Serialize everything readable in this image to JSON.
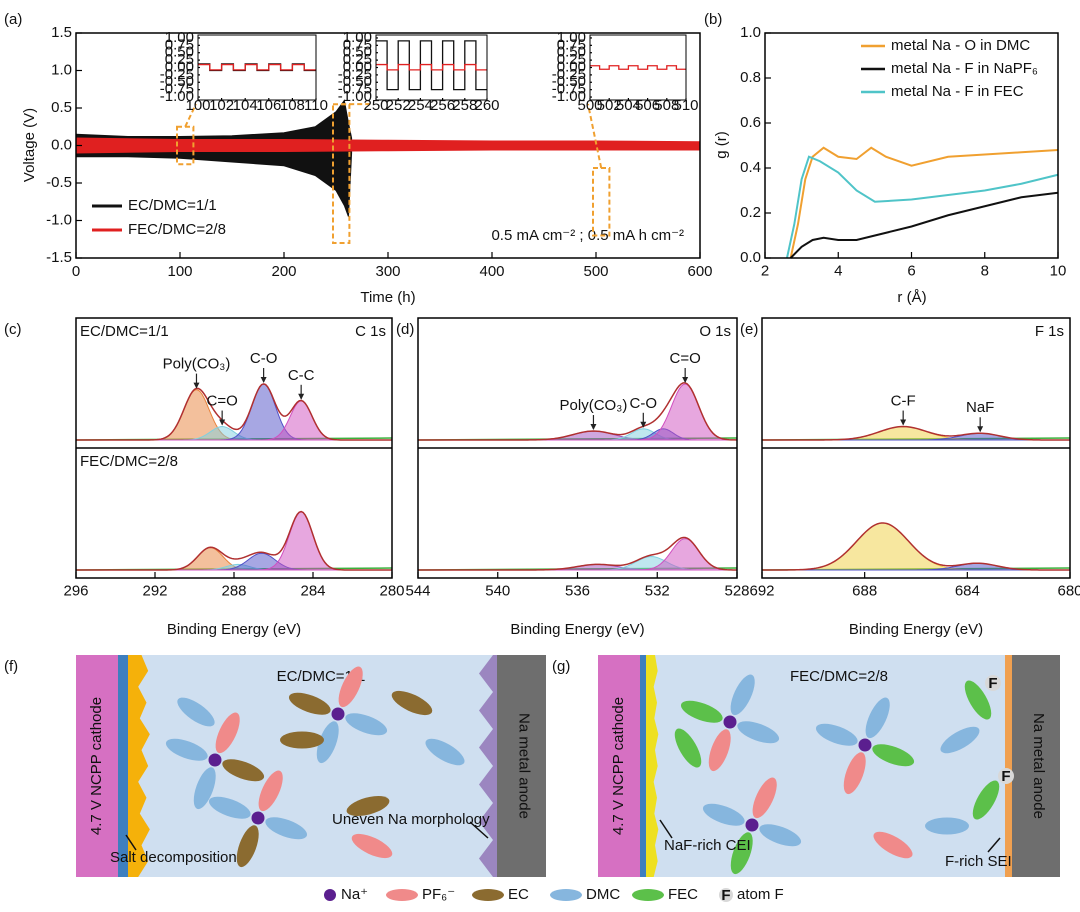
{
  "chart_data": [
    {
      "type": "band",
      "panel_label": "(a)",
      "xlabel": "Time (h)",
      "ylabel": "Voltage (V)",
      "xlim": [
        0,
        600
      ],
      "xticks": [
        0,
        100,
        200,
        300,
        400,
        500,
        600
      ],
      "ylim": [
        -1.5,
        1.5
      ],
      "yticks": [
        -1.5,
        {
          "value": -1.0,
          "label": "-1.0"
        },
        -0.5,
        {
          "value": 0.0,
          "label": "0.0"
        },
        0.5,
        {
          "value": 1.0,
          "label": "1.0"
        },
        1.5
      ],
      "legend": "lower left",
      "annotation": "0.5 mA cm⁻² ; 0.5 mA h cm⁻²",
      "series": [
        {
          "name": "EC/DMC=1/1",
          "color": "#111111",
          "x": [
            0,
            50,
            100,
            150,
            200,
            230,
            250,
            258,
            262,
            265
          ],
          "values": [
            0.15,
            0.12,
            0.12,
            0.13,
            0.17,
            0.25,
            0.45,
            0.6,
            0.3,
            0.1
          ],
          "lower": [
            -0.15,
            -0.15,
            -0.17,
            -0.22,
            -0.27,
            -0.4,
            -0.6,
            -0.8,
            -0.95,
            -0.1
          ]
        },
        {
          "name": "FEC/DMC=2/8",
          "color": "#e02020",
          "x": [
            0,
            100,
            200,
            300,
            400,
            500,
            600
          ],
          "values": [
            0.1,
            0.08,
            0.08,
            0.07,
            0.06,
            0.06,
            0.05
          ],
          "lower": [
            -0.1,
            -0.08,
            -0.08,
            -0.07,
            -0.06,
            -0.06,
            -0.06
          ]
        }
      ],
      "insets": [
        {
          "xlim": [
            100,
            110
          ],
          "xticks": [
            100,
            102,
            104,
            106,
            108,
            110
          ],
          "ylim": [
            -1.1,
            1.1
          ],
          "yticks": [
            {
              "value": -1.0,
              "label": "-1.00"
            },
            -0.75,
            {
              "value": -0.5,
              "label": "-0.50"
            },
            -0.25,
            {
              "value": 0,
              "label": "0.00"
            },
            0.25,
            {
              "value": 0.5,
              "label": "0.50"
            },
            0.75,
            {
              "value": 1.0,
              "label": "1.00"
            }
          ],
          "series": [
            {
              "color": "#111111",
              "high": 0.12,
              "low": -0.1,
              "period": 2
            },
            {
              "color": "#e02020",
              "high": 0.1,
              "low": -0.08,
              "period": 2
            }
          ]
        },
        {
          "xlim": [
            250,
            260
          ],
          "xticks": [
            250,
            252,
            254,
            256,
            258,
            260
          ],
          "ylim": [
            -1.1,
            1.1
          ],
          "yticks": [
            {
              "value": -1.0,
              "label": "-1.00"
            },
            -0.75,
            {
              "value": -0.5,
              "label": "-0.50"
            },
            -0.25,
            {
              "value": 0,
              "label": "0.00"
            },
            0.25,
            {
              "value": 0.5,
              "label": "0.50"
            },
            0.75,
            {
              "value": 1.0,
              "label": "1.00"
            }
          ],
          "series": [
            {
              "color": "#111111",
              "high": 0.9,
              "low": -0.75,
              "period": 2
            },
            {
              "color": "#e02020",
              "high": 0.1,
              "low": -0.08,
              "period": 2
            }
          ]
        },
        {
          "xlim": [
            500,
            510
          ],
          "xticks": [
            500,
            502,
            504,
            506,
            508,
            510
          ],
          "ylim": [
            -1.1,
            1.1
          ],
          "yticks": [
            {
              "value": -1.0,
              "label": "-1.00"
            },
            -0.75,
            {
              "value": -0.5,
              "label": "-0.50"
            },
            -0.25,
            {
              "value": 0,
              "label": "0.00"
            },
            0.25,
            {
              "value": 0.5,
              "label": "0.50"
            },
            0.75,
            {
              "value": 1.0,
              "label": "1.00"
            }
          ],
          "series": [
            {
              "color": "#e02020",
              "high": 0.06,
              "low": -0.06,
              "period": 2
            }
          ]
        }
      ]
    },
    {
      "type": "line",
      "panel_label": "(b)",
      "xlabel": "r (Å)",
      "ylabel": "g (r)",
      "xlim": [
        2,
        10
      ],
      "xticks": [
        2,
        4,
        6,
        8,
        10
      ],
      "ylim": [
        0,
        1.0
      ],
      "yticks": [
        {
          "value": 0.0,
          "label": "0.0"
        },
        0.2,
        0.4,
        0.6,
        0.8,
        {
          "value": 1.0,
          "label": "1.0"
        }
      ],
      "legend": "upper right",
      "series": [
        {
          "name": "metal Na - O in DMC",
          "color": "#f0a030",
          "x": [
            2.7,
            2.9,
            3.1,
            3.3,
            3.6,
            4,
            4.5,
            4.9,
            5.3,
            6,
            7,
            8,
            9,
            10
          ],
          "values": [
            0,
            0.15,
            0.35,
            0.45,
            0.49,
            0.45,
            0.44,
            0.49,
            0.45,
            0.41,
            0.45,
            0.46,
            0.47,
            0.48
          ]
        },
        {
          "name": "metal Na - F in NaPF₆",
          "color": "#111111",
          "x": [
            2.7,
            3,
            3.3,
            3.6,
            4,
            4.5,
            5,
            6,
            7,
            8,
            9,
            10
          ],
          "values": [
            0,
            0.05,
            0.08,
            0.09,
            0.08,
            0.08,
            0.1,
            0.14,
            0.19,
            0.23,
            0.27,
            0.29
          ]
        },
        {
          "name": "metal Na - F in FEC",
          "color": "#4fc4c8",
          "x": [
            2.6,
            2.8,
            3,
            3.2,
            3.5,
            4,
            4.5,
            5,
            6,
            7,
            8,
            9,
            10
          ],
          "values": [
            0,
            0.15,
            0.35,
            0.45,
            0.43,
            0.38,
            0.3,
            0.25,
            0.26,
            0.28,
            0.3,
            0.33,
            0.37
          ]
        }
      ]
    },
    {
      "type": "xps",
      "panel_label": "(c)",
      "title": "C 1s",
      "xlabel": "Binding Energy (eV)",
      "xlim": [
        296,
        280
      ],
      "xticks": [
        296,
        292,
        288,
        284,
        280
      ],
      "envelope_color": "#b03030",
      "subpanels": [
        {
          "label": "EC/DMC=1/1",
          "ylim": [
            0,
            1
          ],
          "peaks": [
            {
              "label": "Poly(CO₃)",
              "center": 289.9,
              "height": 0.45,
              "width": 1.5,
              "color": "#e8813a"
            },
            {
              "label": "C=O",
              "center": 288.6,
              "height": 0.12,
              "width": 1.4,
              "color": "#7fd0e0"
            },
            {
              "label": "C-O",
              "center": 286.5,
              "height": 0.5,
              "width": 1.4,
              "color": "#5050c8"
            },
            {
              "label": "C-C",
              "center": 284.6,
              "height": 0.35,
              "width": 1.3,
              "color": "#d050c0"
            }
          ]
        },
        {
          "label": "FEC/DMC=2/8",
          "ylim": [
            0,
            1
          ],
          "peaks": [
            {
              "center": 289.2,
              "height": 0.2,
              "width": 1.5,
              "color": "#e8813a"
            },
            {
              "center": 287.8,
              "height": 0.05,
              "width": 1.4,
              "color": "#7fd0e0"
            },
            {
              "center": 286.6,
              "height": 0.15,
              "width": 1.6,
              "color": "#5050c8"
            },
            {
              "center": 284.6,
              "height": 0.52,
              "width": 1.4,
              "color": "#d050c0"
            }
          ]
        }
      ]
    },
    {
      "type": "xps",
      "panel_label": "(d)",
      "title": "O 1s",
      "xlabel": "Binding Energy (eV)",
      "xlim": [
        544,
        528
      ],
      "xticks": [
        544,
        540,
        536,
        532,
        528
      ],
      "envelope_color": "#b03030",
      "subpanels": [
        {
          "ylim": [
            0,
            1
          ],
          "peaks": [
            {
              "label": "Poly(CO₃)",
              "center": 535.2,
              "height": 0.08,
              "width": 2.4,
              "color": "#a050c0"
            },
            {
              "label": "C-O",
              "center": 532.7,
              "height": 0.1,
              "width": 1.4,
              "color": "#7fd0e0"
            },
            {
              "center": 531.7,
              "height": 0.1,
              "width": 1.2,
              "color": "#5050c8"
            },
            {
              "label": "C=O",
              "center": 530.6,
              "height": 0.5,
              "width": 1.6,
              "color": "#d050c0"
            }
          ]
        },
        {
          "ylim": [
            0,
            1
          ],
          "peaks": [
            {
              "center": 535,
              "height": 0.05,
              "width": 2.4,
              "color": "#a050c0"
            },
            {
              "center": 532.3,
              "height": 0.12,
              "width": 1.8,
              "color": "#7fd0e0"
            },
            {
              "center": 530.6,
              "height": 0.28,
              "width": 1.6,
              "color": "#d050c0"
            }
          ]
        }
      ]
    },
    {
      "type": "xps",
      "panel_label": "(e)",
      "title": "F 1s",
      "xlabel": "Binding Energy (eV)",
      "xlim": [
        692,
        680
      ],
      "xticks": [
        692,
        688,
        684,
        680
      ],
      "envelope_color": "#b03030",
      "subpanels": [
        {
          "ylim": [
            0,
            1
          ],
          "peaks": [
            {
              "label": "C-F",
              "center": 686.5,
              "height": 0.12,
              "width": 2.2,
              "color": "#f0d040"
            },
            {
              "label": "NaF",
              "center": 683.5,
              "height": 0.06,
              "width": 1.8,
              "color": "#5050c8"
            }
          ]
        },
        {
          "ylim": [
            0,
            1
          ],
          "peaks": [
            {
              "center": 687.3,
              "height": 0.42,
              "width": 2.4,
              "color": "#f0d040"
            },
            {
              "center": 683.6,
              "height": 0.06,
              "width": 1.8,
              "color": "#5050c8"
            }
          ]
        }
      ]
    }
  ],
  "diagrams": [
    {
      "panel_label": "(f)",
      "title": "EC/DMC=1/1",
      "cathode": "4.7 V NCPP cathode",
      "anode": "Na metal anode",
      "notes": [
        "Salt decomposition",
        "Uneven Na morphology"
      ]
    },
    {
      "panel_label": "(g)",
      "title": "FEC/DMC=2/8",
      "cathode": "4.7 V NCPP cathode",
      "anode": "Na metal anode",
      "notes": [
        "NaF-rich CEI",
        "F-rich SEI"
      ],
      "atom_labels": [
        "F",
        "F"
      ]
    }
  ],
  "legend": [
    {
      "label": "Na⁺",
      "color": "#5b1f8f"
    },
    {
      "label": "PF₆⁻",
      "color": "#f08a8a"
    },
    {
      "label": "EC",
      "color": "#8b6b30"
    },
    {
      "label": "DMC",
      "color": "#86b6de"
    },
    {
      "label": "FEC",
      "color": "#5cc04a"
    },
    {
      "symbol": "F",
      "label": "atom F",
      "color": "#d8d8d8"
    }
  ]
}
